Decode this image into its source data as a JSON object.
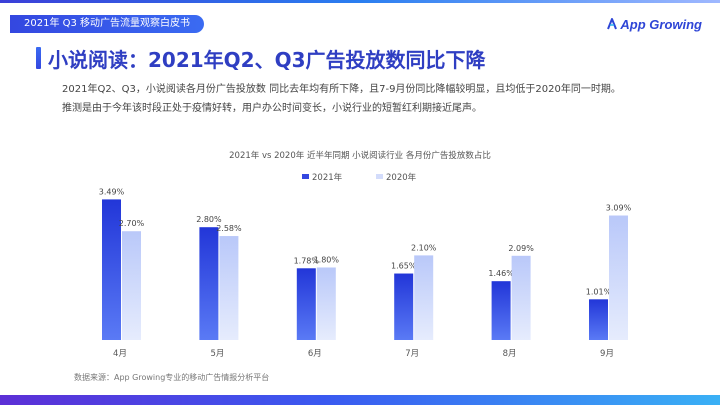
{
  "header": {
    "report_tag": "2021年 Q3 移动广告流量观察白皮书",
    "logo_text": "App Growing",
    "logo_icon": "appgrowing-logo-icon"
  },
  "page_title": "小说阅读：2021年Q2、Q3广告投放数同比下降",
  "description": {
    "line1": "2021年Q2、Q3，小说阅读各月份广告投放数 同比去年均有所下降，且7-9月份同比降幅较明显，且均低于2020年同一时期。",
    "line2": "推测是由于今年该时段正处于疫情好转，用户办公时间变长，小说行业的短暂红利期接近尾声。"
  },
  "colors": {
    "accent": "#2f3ec2",
    "series_2021": "#3447e0",
    "series_2020": "#d3dcfb"
  },
  "chart_data": {
    "type": "bar",
    "title": "2021年 vs 2020年  近半年同期 小说阅读行业 各月份广告投放数占比",
    "categories": [
      "4月",
      "5月",
      "6月",
      "7月",
      "8月",
      "9月"
    ],
    "series": [
      {
        "name": "2021年",
        "values": [
          3.49,
          2.8,
          1.78,
          1.65,
          1.46,
          1.01
        ],
        "labels": [
          "3.49%",
          "2.80%",
          "1.78%",
          "1.65%",
          "1.46%",
          "1.01%"
        ]
      },
      {
        "name": "2020年",
        "values": [
          2.7,
          2.58,
          1.8,
          2.1,
          2.09,
          3.09
        ],
        "labels": [
          "2.70%",
          "2.58%",
          "1.80%",
          "2.10%",
          "2.09%",
          "3.09%"
        ]
      }
    ],
    "ylim": [
      0,
      4
    ],
    "grid": false,
    "legend_position": "top-center"
  },
  "footer": {
    "source": "数据来源：App Growing专业的移动广告情报分析平台"
  }
}
